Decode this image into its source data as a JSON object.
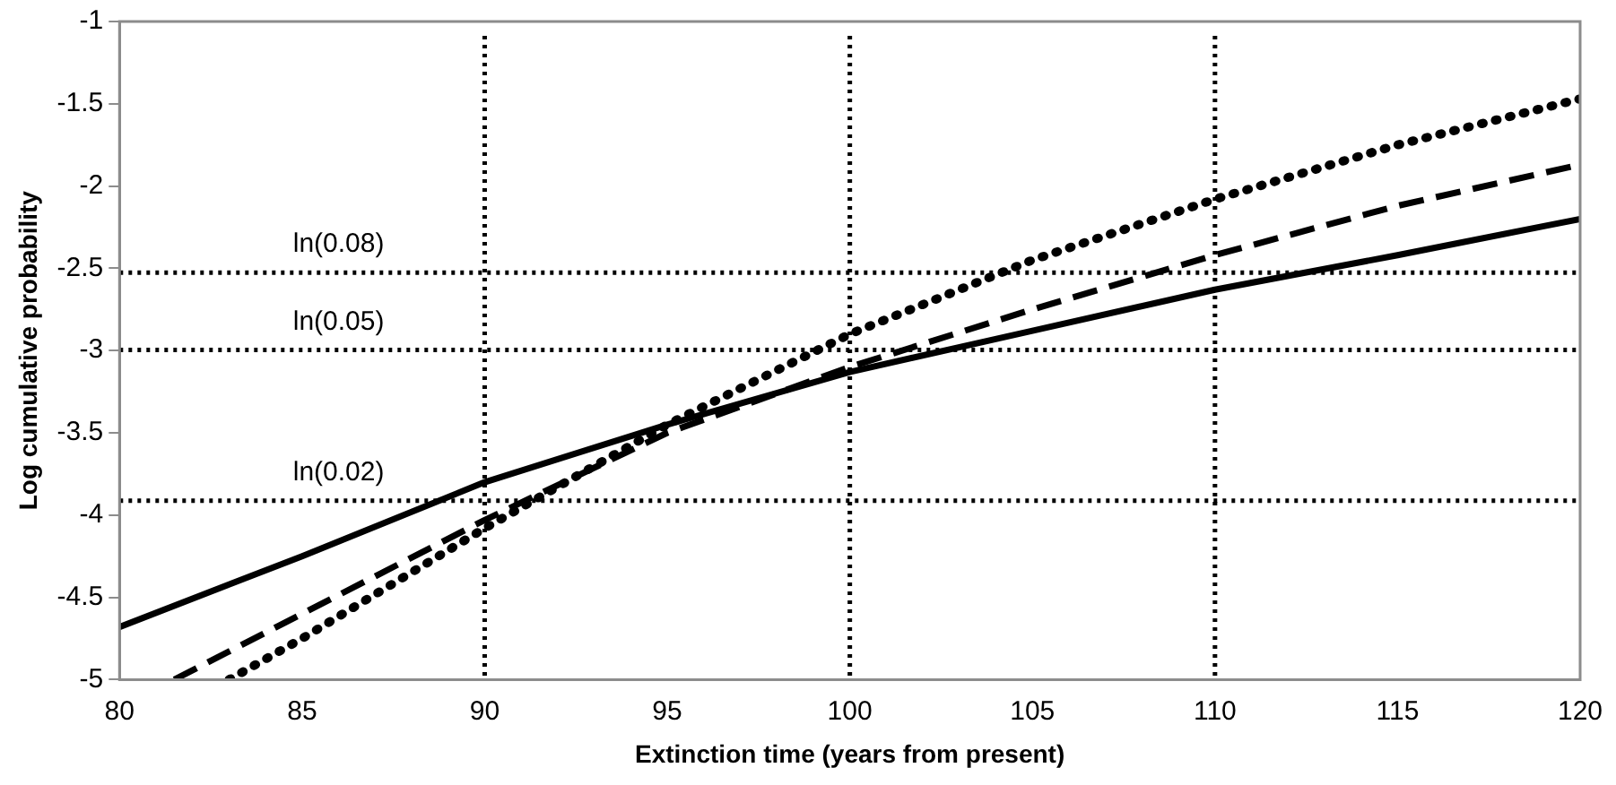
{
  "chart_data": {
    "type": "line",
    "xlabel": "Extinction time (years from present)",
    "ylabel": "Log cumulative probability",
    "xlim": [
      80,
      120
    ],
    "xticks": [
      80,
      85,
      90,
      95,
      100,
      105,
      110,
      115,
      120
    ],
    "ylim": [
      -5,
      -1
    ],
    "yticks": [
      -5,
      -4.5,
      -4,
      -3.5,
      -3,
      -2.5,
      -2,
      -1.5,
      -1
    ],
    "grid": false,
    "legend": false,
    "marker": "none",
    "series": [
      {
        "color": "#000000",
        "line_style": "solid",
        "x": [
          80,
          85,
          90,
          95,
          100,
          105,
          110,
          115,
          120
        ],
        "values": [
          -4.68,
          -4.25,
          -3.8,
          -3.45,
          -3.13,
          -2.88,
          -2.63,
          -2.42,
          -2.2
        ]
      },
      {
        "color": "#000000",
        "line_style": "dashed",
        "x": [
          81.5,
          85,
          90,
          95,
          100,
          105,
          110,
          115,
          120
        ],
        "values": [
          -5,
          -4.6,
          -4.03,
          -3.5,
          -3.1,
          -2.75,
          -2.42,
          -2.12,
          -1.87
        ]
      },
      {
        "color": "#000000",
        "line_style": "dotted",
        "x": [
          83,
          85,
          90,
          95,
          100,
          105,
          110,
          115,
          120
        ],
        "values": [
          -5,
          -4.75,
          -4.08,
          -3.45,
          -2.9,
          -2.45,
          -2.08,
          -1.75,
          -1.47
        ]
      }
    ],
    "ref_lines": [
      {
        "axis": "y",
        "value": -2.526,
        "label": "ln(0.08)",
        "line_style": "dotted"
      },
      {
        "axis": "y",
        "value": -2.996,
        "label": "ln(0.05)",
        "line_style": "dotted"
      },
      {
        "axis": "y",
        "value": -3.912,
        "label": "ln(0.02)",
        "line_style": "dotted"
      },
      {
        "axis": "x",
        "value": 90,
        "line_style": "dotted"
      },
      {
        "axis": "x",
        "value": 100,
        "line_style": "dotted"
      },
      {
        "axis": "x",
        "value": 110,
        "line_style": "dotted"
      }
    ]
  }
}
